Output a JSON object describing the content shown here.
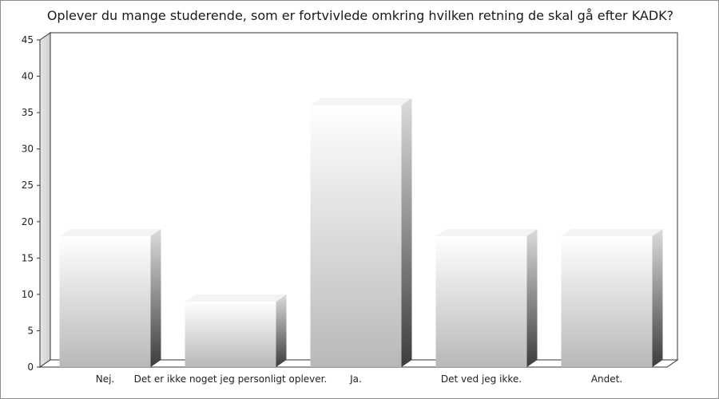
{
  "chart_data": {
    "type": "bar",
    "title": "Oplever du mange studerende, som er fortvivlede omkring hvilken retning de skal gå efter KADK?",
    "categories": [
      "Nej.",
      "Det er ikke noget jeg personligt oplever.",
      "Ja.",
      "Det ved jeg ikke.",
      "Andet."
    ],
    "values": [
      18,
      9,
      36,
      18,
      18
    ],
    "ylim": [
      0,
      45
    ],
    "yticks": [
      0,
      5,
      10,
      15,
      20,
      25,
      30,
      35,
      40,
      45
    ],
    "xlabel": "",
    "ylabel": "",
    "grid": false,
    "legend": "none"
  }
}
